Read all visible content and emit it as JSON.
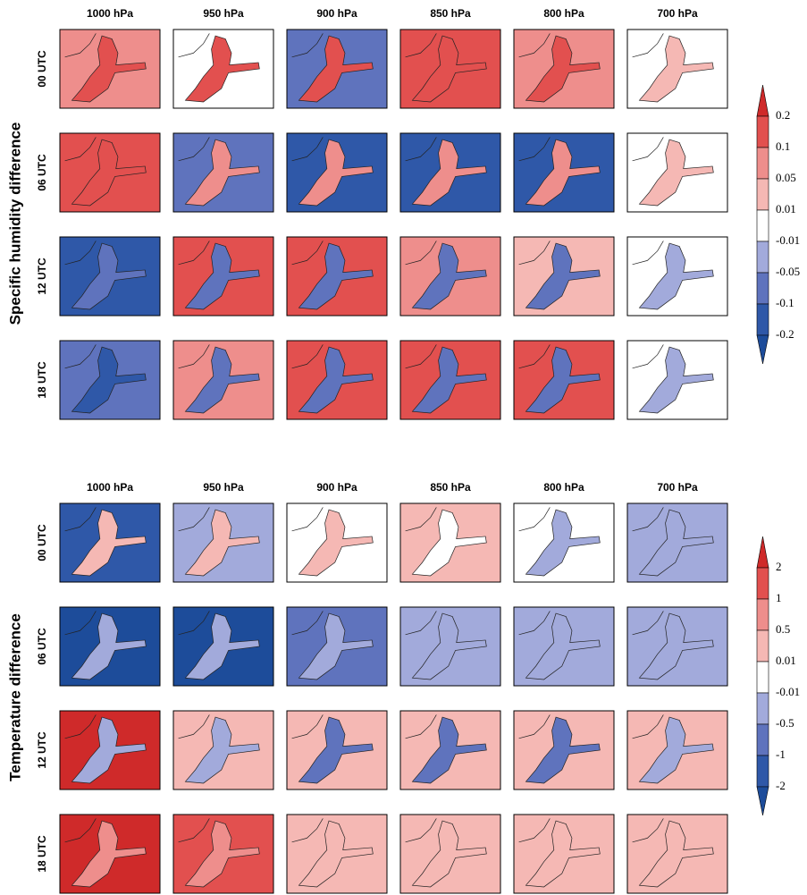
{
  "figures": [
    {
      "label": "Specific humidity difference",
      "columns": [
        "1000 hPa",
        "950 hPa",
        "900 hPa",
        "850 hPa",
        "800 hPa",
        "700 hPa"
      ],
      "rows": [
        "00 UTC",
        "06 UTC",
        "12 UTC",
        "18 UTC"
      ],
      "colorbar": [
        "0.2",
        "0.1",
        "0.05",
        "0.01",
        "-0.01",
        "-0.05",
        "-0.1",
        "-0.2"
      ]
    },
    {
      "label": "Temperature difference",
      "columns": [
        "1000 hPa",
        "950 hPa",
        "900 hPa",
        "850 hPa",
        "800 hPa",
        "700 hPa"
      ],
      "rows": [
        "00 UTC",
        "06 UTC",
        "12 UTC",
        "18 UTC"
      ],
      "colorbar": [
        "2",
        "1",
        "0.5",
        "0.01",
        "-0.01",
        "-0.5",
        "-1",
        "-2"
      ]
    }
  ]
}
